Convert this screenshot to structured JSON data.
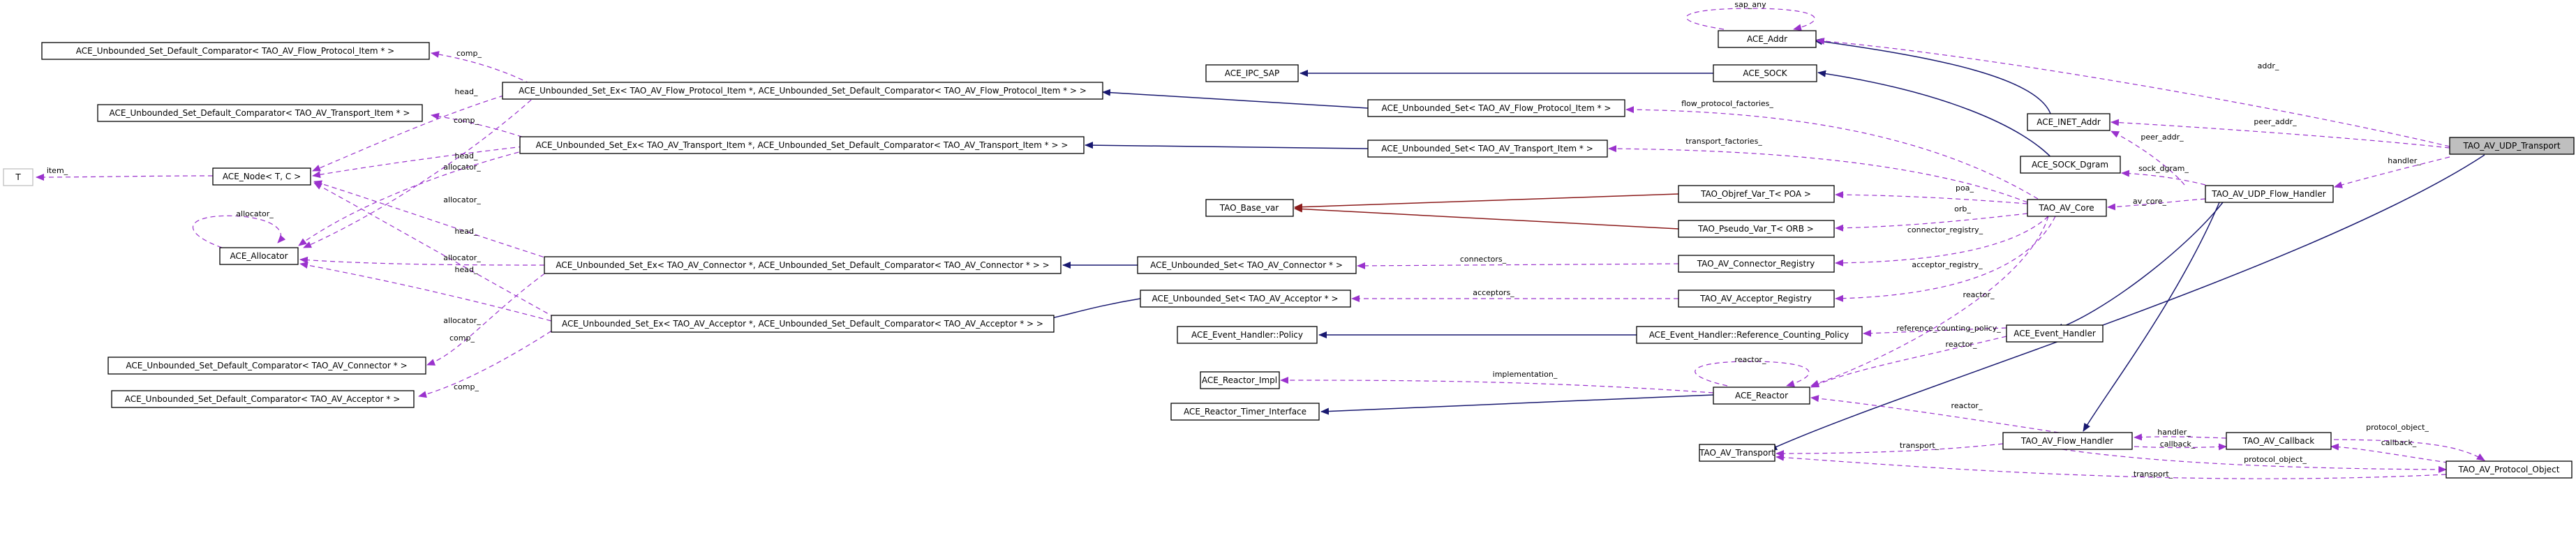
{
  "colors": {
    "usage_edge": "#9a32cd",
    "inheritance_edge": "#191970",
    "template_edge": "#8b1a1a",
    "root_fill": "#bfbfbf",
    "node_fill": "#ffffff"
  },
  "nodes": [
    {
      "id": "n1",
      "label": "ACE_Unbounded_Set_Default_Comparator< TAO_AV_Flow_Protocol_Item * >"
    },
    {
      "id": "n2",
      "label": "ACE_Unbounded_Set_Default_Comparator< TAO_AV_Transport_Item * >"
    },
    {
      "id": "n3",
      "label": "T"
    },
    {
      "id": "n4",
      "label": "ACE_Node< T, C >"
    },
    {
      "id": "n5",
      "label": "ACE_Allocator"
    },
    {
      "id": "n6",
      "label": "ACE_Unbounded_Set_Default_Comparator< TAO_AV_Connector * >"
    },
    {
      "id": "n7",
      "label": "ACE_Unbounded_Set_Default_Comparator< TAO_AV_Acceptor * >"
    },
    {
      "id": "n8",
      "label": "ACE_Unbounded_Set_Ex< TAO_AV_Flow_Protocol_Item *, ACE_Unbounded_Set_Default_Comparator< TAO_AV_Flow_Protocol_Item * > >"
    },
    {
      "id": "n9",
      "label": "ACE_Unbounded_Set_Ex< TAO_AV_Transport_Item *, ACE_Unbounded_Set_Default_Comparator< TAO_AV_Transport_Item * > >"
    },
    {
      "id": "n10",
      "label": "ACE_Unbounded_Set_Ex< TAO_AV_Connector *, ACE_Unbounded_Set_Default_Comparator< TAO_AV_Connector * > >"
    },
    {
      "id": "n11",
      "label": "ACE_Unbounded_Set_Ex< TAO_AV_Acceptor *, ACE_Unbounded_Set_Default_Comparator< TAO_AV_Acceptor * > >"
    },
    {
      "id": "n12",
      "label": "ACE_IPC_SAP"
    },
    {
      "id": "n13",
      "label": "ACE_Unbounded_Set< TAO_AV_Flow_Protocol_Item * >"
    },
    {
      "id": "n14",
      "label": "ACE_Unbounded_Set< TAO_AV_Transport_Item * >"
    },
    {
      "id": "n15",
      "label": "TAO_Base_var"
    },
    {
      "id": "n16",
      "label": "ACE_Unbounded_Set< TAO_AV_Connector * >"
    },
    {
      "id": "n17",
      "label": "ACE_Unbounded_Set< TAO_AV_Acceptor * >"
    },
    {
      "id": "n18",
      "label": "ACE_Event_Handler::Policy"
    },
    {
      "id": "n19",
      "label": "ACE_Reactor_Impl"
    },
    {
      "id": "n20",
      "label": "ACE_Reactor_Timer_Interface"
    },
    {
      "id": "n21",
      "label": "ACE_Addr"
    },
    {
      "id": "n22",
      "label": "ACE_SOCK"
    },
    {
      "id": "n23",
      "label": "TAO_Objref_Var_T< POA >"
    },
    {
      "id": "n24",
      "label": "TAO_Pseudo_Var_T< ORB >"
    },
    {
      "id": "n25",
      "label": "TAO_AV_Connector_Registry"
    },
    {
      "id": "n26",
      "label": "TAO_AV_Acceptor_Registry"
    },
    {
      "id": "n27",
      "label": "ACE_Event_Handler::Reference_Counting_Policy"
    },
    {
      "id": "n28",
      "label": "ACE_Reactor"
    },
    {
      "id": "n29",
      "label": "TAO_AV_Transport"
    },
    {
      "id": "n30",
      "label": "ACE_INET_Addr"
    },
    {
      "id": "n31",
      "label": "ACE_SOCK_Dgram"
    },
    {
      "id": "n32",
      "label": "TAO_AV_Core"
    },
    {
      "id": "n33",
      "label": "ACE_Event_Handler"
    },
    {
      "id": "n34",
      "label": "TAO_AV_Flow_Handler"
    },
    {
      "id": "n35",
      "label": "TAO_AV_Callback"
    },
    {
      "id": "n36",
      "label": "TAO_AV_UDP_Flow_Handler"
    },
    {
      "id": "n37",
      "label": "TAO_AV_Protocol_Object"
    },
    {
      "id": "n38",
      "label": "TAO_AV_UDP_Transport"
    }
  ],
  "edge_labels": {
    "sap_any": "sap_any",
    "addr": "addr_",
    "peer_addr_root": "peer_addr_",
    "peer_addr_udp": "peer_addr_",
    "handler_root": "handler_",
    "sock_dgram": "sock_dgram_",
    "av_core": "av_core_",
    "flow_protocol_factories": "flow_protocol_factories_",
    "transport_factories": "transport_factories_",
    "poa": "poa_",
    "orb": "orb_",
    "connector_registry": "connector_registry_",
    "acceptor_registry": "acceptor_registry_",
    "connectors": "connectors_",
    "acceptors": "acceptors_",
    "reactor_core": "reactor_",
    "reference_counting_policy": "reference_counting_policy_",
    "reactor_eh": "reactor_",
    "reactor_self": "reactor_",
    "implementation": "implementation_",
    "reactor_fh": "reactor_",
    "transport_fh": "transport_",
    "handler_cb": "handler_",
    "callback": "callback_",
    "protocol_object_cb": "protocol_object_",
    "callback_po": "callback_",
    "protocol_object_fh": "protocol_object_",
    "transport_po": "transport_",
    "comp_flow": "comp_",
    "head_flow": "head_",
    "comp_transport": "comp_",
    "head_transport": "head_",
    "allocator_transport": "allocator_",
    "allocator_flow": "allocator_",
    "allocator_self": "allocator_",
    "allocator_connector": "allocator_",
    "head_connector": "head_",
    "allocator_acceptor": "allocator_",
    "head_acceptor": "head_",
    "comp_connector": "comp_",
    "comp_acceptor": "comp_",
    "item": "item_"
  }
}
